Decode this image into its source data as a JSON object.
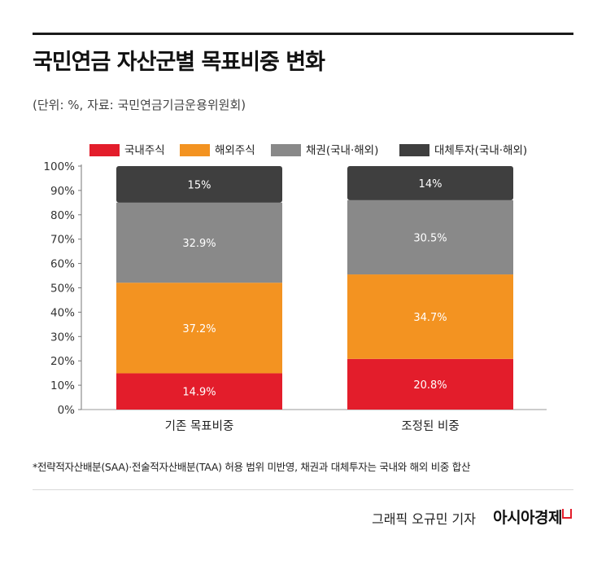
{
  "title": "국민연금 자산군별 목표비중 변화",
  "subtitle": "(단위: %, 자료: 국민연금기금운용위원회)",
  "footnote": "*전략적자산배분(SAA)·전술적자산배분(TAA) 허용 범위 미반영, 채권과 대체투자는 국내와 해외 비중 합산",
  "credit": "그래픽  오규민 기자",
  "brand": "아시아경제",
  "colors": {
    "accent": "#e31d2b"
  },
  "chart_data": {
    "type": "bar",
    "stacked": true,
    "categories": [
      "기존 목표비중",
      "조정된 비중"
    ],
    "series": [
      {
        "name": "국내주식",
        "color": "#e31d2b",
        "values": [
          14.9,
          20.8
        ],
        "labels": [
          "14.9%",
          "20.8%"
        ]
      },
      {
        "name": "해외주식",
        "color": "#f39321",
        "values": [
          37.2,
          34.7
        ],
        "labels": [
          "37.2%",
          "34.7%"
        ]
      },
      {
        "name": "채권(국내·해외)",
        "color": "#898989",
        "values": [
          32.9,
          30.5
        ],
        "labels": [
          "32.9%",
          "30.5%"
        ]
      },
      {
        "name": "대체투자(국내·해외)",
        "color": "#3f3f3f",
        "values": [
          15,
          14
        ],
        "labels": [
          "15%",
          "14%"
        ]
      }
    ],
    "yticks": [
      "0%",
      "10%",
      "20%",
      "30%",
      "40%",
      "50%",
      "60%",
      "70%",
      "80%",
      "90%",
      "100%"
    ],
    "ylim": [
      0,
      100
    ],
    "legend": "top",
    "grid": false
  }
}
